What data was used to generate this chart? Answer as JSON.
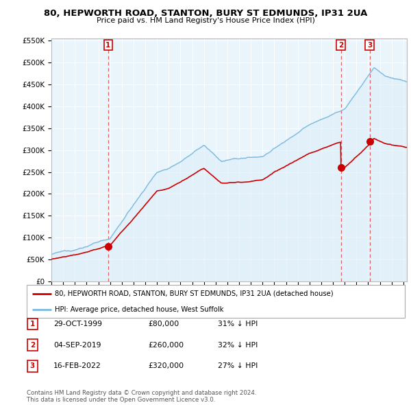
{
  "title1": "80, HEPWORTH ROAD, STANTON, BURY ST EDMUNDS, IP31 2UA",
  "title2": "Price paid vs. HM Land Registry's House Price Index (HPI)",
  "ylabel_ticks": [
    "£0",
    "£50K",
    "£100K",
    "£150K",
    "£200K",
    "£250K",
    "£300K",
    "£350K",
    "£400K",
    "£450K",
    "£500K",
    "£550K"
  ],
  "ytick_values": [
    0,
    50000,
    100000,
    150000,
    200000,
    250000,
    300000,
    350000,
    400000,
    450000,
    500000,
    550000
  ],
  "hpi_color": "#7ab9e0",
  "hpi_fill": "#ddeef8",
  "price_color": "#cc0000",
  "vline_color": "#e06060",
  "transactions": [
    {
      "date_num": 1999.83,
      "price": 80000,
      "label": "1"
    },
    {
      "date_num": 2019.67,
      "price": 260000,
      "label": "2"
    },
    {
      "date_num": 2022.12,
      "price": 320000,
      "label": "3"
    }
  ],
  "legend_line1": "80, HEPWORTH ROAD, STANTON, BURY ST EDMUNDS, IP31 2UA (detached house)",
  "legend_line2": "HPI: Average price, detached house, West Suffolk",
  "table_rows": [
    {
      "num": "1",
      "date": "29-OCT-1999",
      "price": "£80,000",
      "hpi": "31% ↓ HPI"
    },
    {
      "num": "2",
      "date": "04-SEP-2019",
      "price": "£260,000",
      "hpi": "32% ↓ HPI"
    },
    {
      "num": "3",
      "date": "16-FEB-2022",
      "price": "£320,000",
      "hpi": "27% ↓ HPI"
    }
  ],
  "footer": "Contains HM Land Registry data © Crown copyright and database right 2024.\nThis data is licensed under the Open Government Licence v3.0.",
  "xmin": 1995.0,
  "xmax": 2025.3,
  "ymin": 0,
  "ymax": 550000
}
